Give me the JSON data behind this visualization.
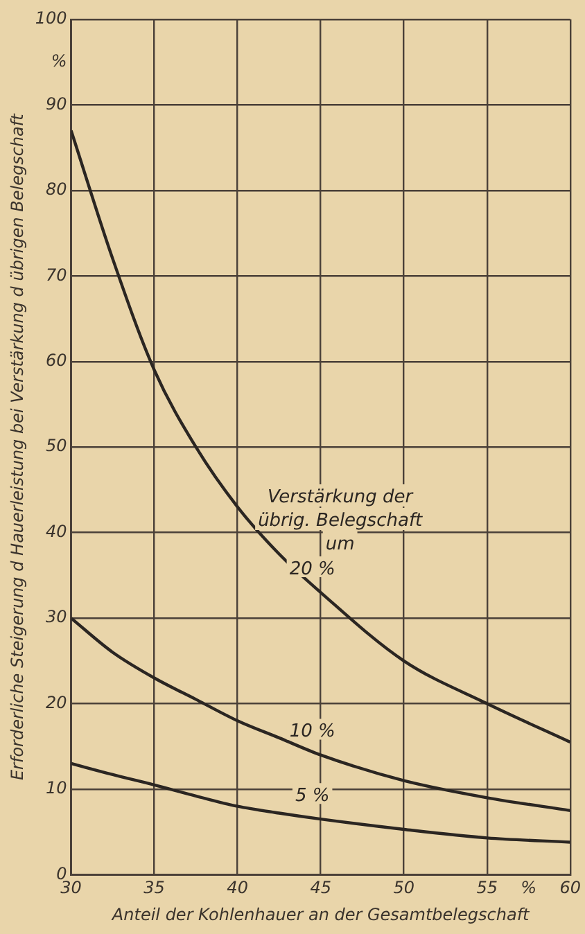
{
  "chart_data": {
    "type": "line",
    "xlabel": "Anteil der Kohlenhauer an der Gesamtbelegschaft",
    "ylabel": "Erforderliche Steigerung d Hauerleistung bei Verstärkung d übrigen Belegschaft",
    "annotations": [
      "Verstärkung der übrig. Belegschaft um"
    ],
    "x": [
      30,
      32.5,
      35,
      37.5,
      40,
      42.5,
      45,
      50,
      55,
      60
    ],
    "series": [
      {
        "name": "20 %",
        "color": "#2b2622",
        "values": [
          87,
          72,
          59,
          50,
          43,
          37.5,
          33,
          25,
          20,
          15.5
        ]
      },
      {
        "name": "10 %",
        "color": "#2b2622",
        "values": [
          30,
          26,
          23,
          20.5,
          18,
          16,
          14,
          11,
          9,
          7.5
        ]
      },
      {
        "name": "5 %",
        "color": "#2b2622",
        "values": [
          13,
          11.7,
          10.5,
          9.2,
          8,
          7.2,
          6.5,
          5.3,
          4.3,
          3.8
        ]
      }
    ],
    "xlim": [
      30,
      60
    ],
    "xticks": [
      30,
      35,
      40,
      45,
      50,
      55,
      {
        "value": 57.5,
        "label": "%"
      },
      60
    ],
    "ylim": [
      0,
      100
    ],
    "yticks": [
      0,
      10,
      20,
      30,
      40,
      50,
      60,
      70,
      80,
      90,
      {
        "value": 95,
        "label": "%"
      },
      100
    ],
    "grid": true,
    "legend": false,
    "marker": "none",
    "line_style": "solid"
  }
}
